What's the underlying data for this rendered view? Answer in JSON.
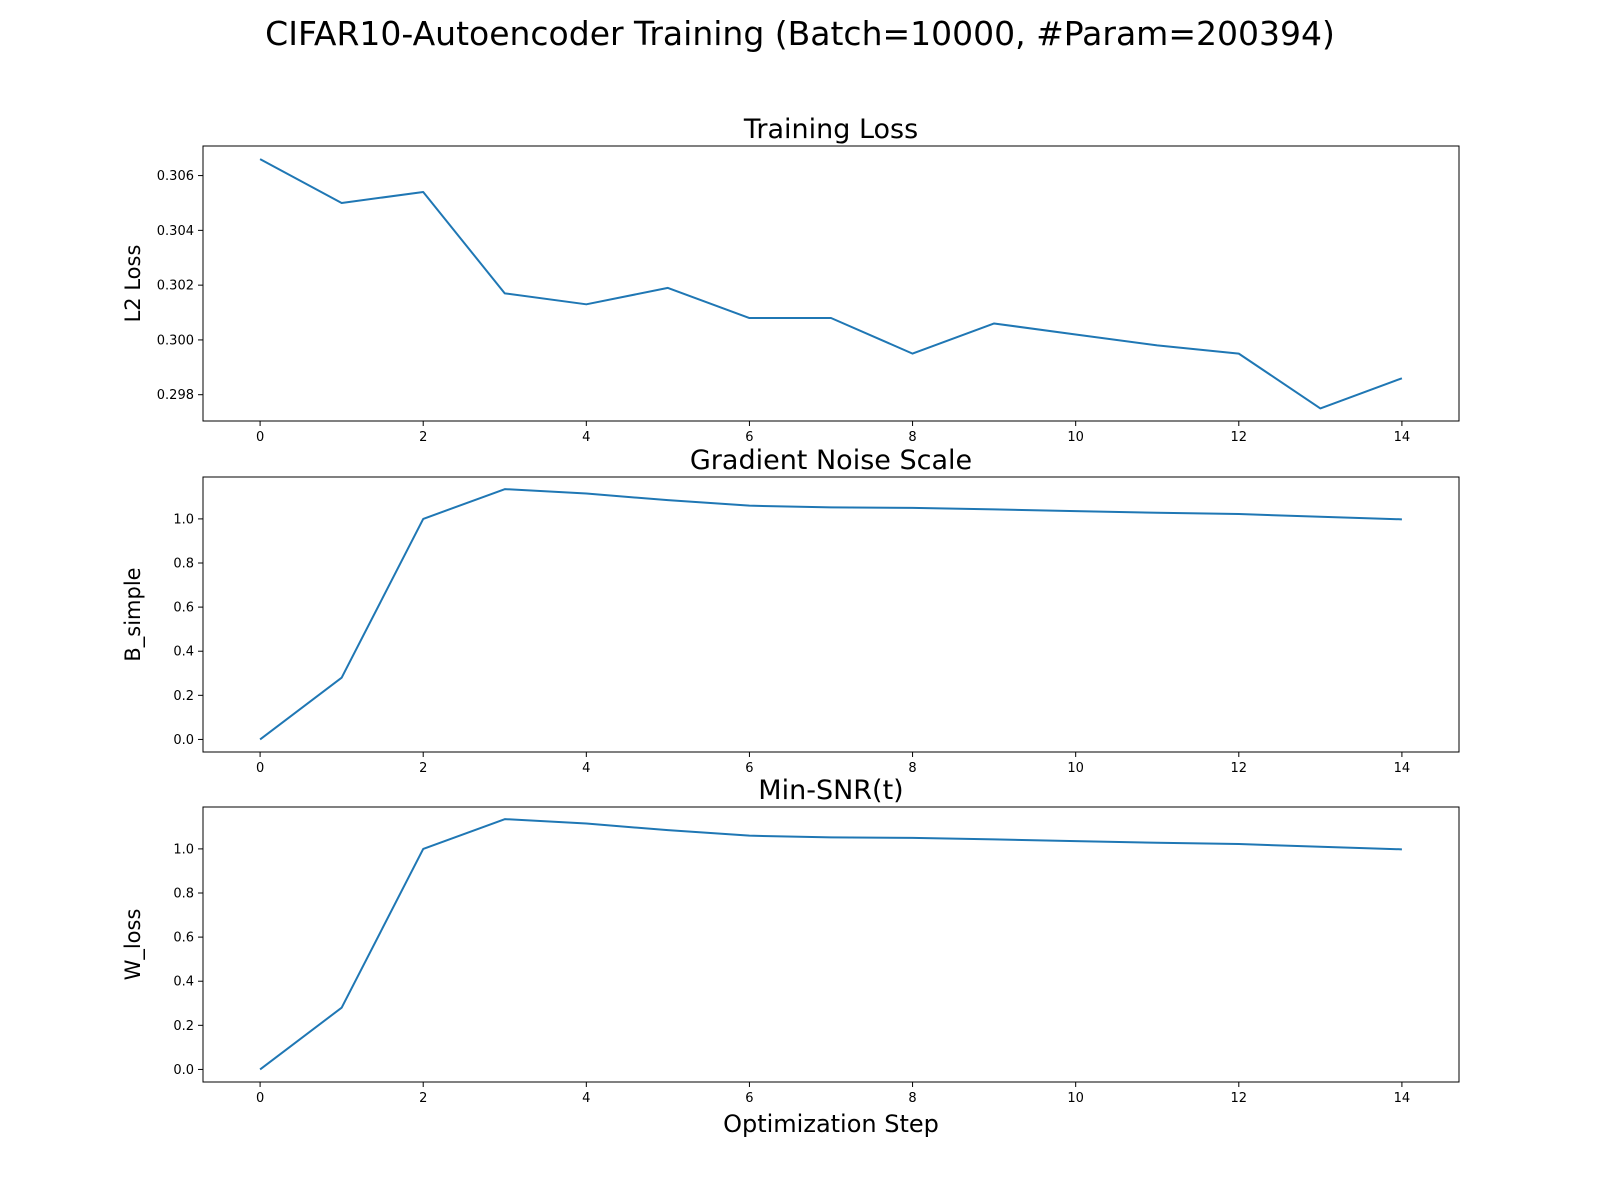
{
  "figure": {
    "suptitle": "CIFAR10-Autoencoder Training (Batch=10000, #Param=200394)"
  },
  "colors": {
    "line": "#1f77b4",
    "axes": "#000000"
  },
  "chart_data": [
    {
      "type": "line",
      "title": "Training Loss",
      "xlabel": "",
      "ylabel": "L2 Loss",
      "xlim": [
        -0.7,
        14.7
      ],
      "ylim": [
        0.29704,
        0.30708
      ],
      "xticks": [
        0,
        2,
        4,
        6,
        8,
        10,
        12,
        14
      ],
      "xtick_labels": [
        "0",
        "2",
        "4",
        "6",
        "8",
        "10",
        "12",
        "14"
      ],
      "yticks": [
        0.298,
        0.3,
        0.302,
        0.304,
        0.306
      ],
      "ytick_labels": [
        "0.298",
        "0.300",
        "0.302",
        "0.304",
        "0.306"
      ],
      "grid": false,
      "series": [
        {
          "x": [
            0,
            1,
            2,
            3,
            4,
            5,
            6,
            7,
            8,
            9,
            10,
            11,
            12,
            13,
            14
          ],
          "y": [
            0.3066,
            0.305,
            0.3054,
            0.3017,
            0.3013,
            0.3019,
            0.3008,
            0.3008,
            0.2995,
            0.3006,
            0.3002,
            0.2998,
            0.2995,
            0.2975,
            0.2986
          ]
        }
      ]
    },
    {
      "type": "line",
      "title": "Gradient Noise Scale",
      "xlabel": "",
      "ylabel": "B_simple",
      "xlim": [
        -0.7,
        14.7
      ],
      "ylim": [
        -0.057,
        1.19
      ],
      "xticks": [
        0,
        2,
        4,
        6,
        8,
        10,
        12,
        14
      ],
      "xtick_labels": [
        "0",
        "2",
        "4",
        "6",
        "8",
        "10",
        "12",
        "14"
      ],
      "yticks": [
        0.0,
        0.2,
        0.4,
        0.6,
        0.8,
        1.0
      ],
      "ytick_labels": [
        "0.0",
        "0.2",
        "0.4",
        "0.6",
        "0.8",
        "1.0"
      ],
      "grid": false,
      "series": [
        {
          "x": [
            0,
            1,
            2,
            3,
            4,
            5,
            6,
            7,
            8,
            9,
            10,
            11,
            12,
            13,
            14
          ],
          "y": [
            0.0,
            0.28,
            1.0,
            1.135,
            1.115,
            1.085,
            1.06,
            1.052,
            1.05,
            1.043,
            1.035,
            1.028,
            1.022,
            1.01,
            0.998
          ]
        }
      ]
    },
    {
      "type": "line",
      "title": "Min-SNR(t)",
      "xlabel": "Optimization Step",
      "ylabel": "W_loss",
      "xlim": [
        -0.7,
        14.7
      ],
      "ylim": [
        -0.057,
        1.19
      ],
      "xticks": [
        0,
        2,
        4,
        6,
        8,
        10,
        12,
        14
      ],
      "xtick_labels": [
        "0",
        "2",
        "4",
        "6",
        "8",
        "10",
        "12",
        "14"
      ],
      "yticks": [
        0.0,
        0.2,
        0.4,
        0.6,
        0.8,
        1.0
      ],
      "ytick_labels": [
        "0.0",
        "0.2",
        "0.4",
        "0.6",
        "0.8",
        "1.0"
      ],
      "grid": false,
      "series": [
        {
          "x": [
            0,
            1,
            2,
            3,
            4,
            5,
            6,
            7,
            8,
            9,
            10,
            11,
            12,
            13,
            14
          ],
          "y": [
            0.0,
            0.28,
            1.0,
            1.135,
            1.115,
            1.085,
            1.06,
            1.052,
            1.05,
            1.043,
            1.035,
            1.028,
            1.022,
            1.01,
            0.998
          ]
        }
      ]
    }
  ]
}
